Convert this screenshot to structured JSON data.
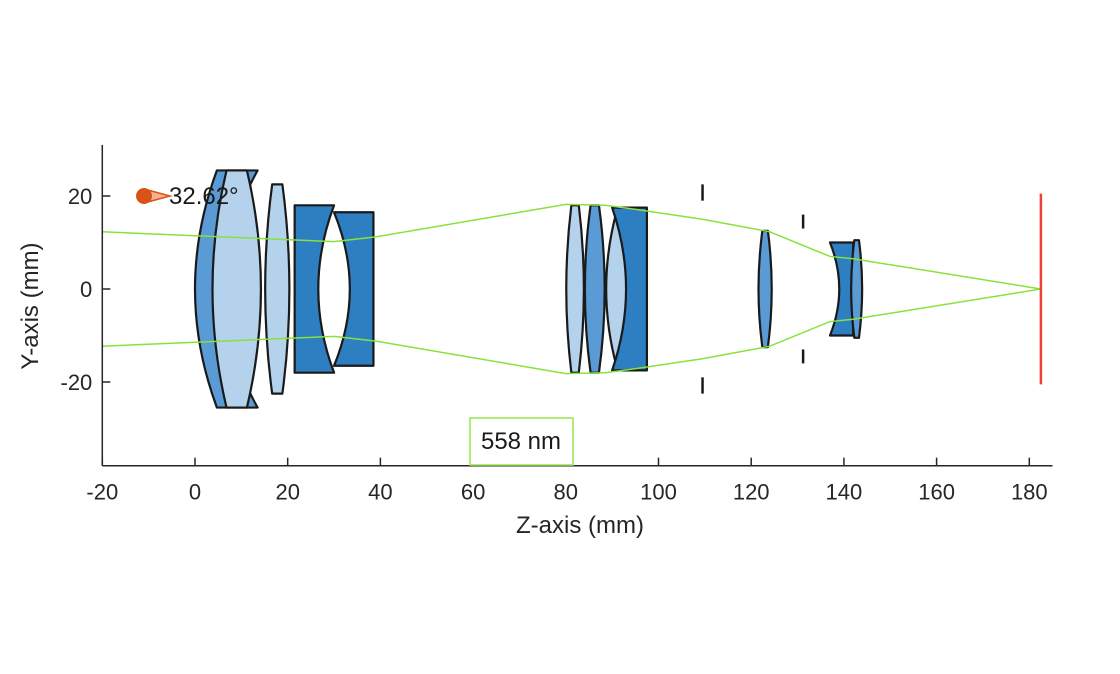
{
  "x_axis": {
    "label": "Z-axis (mm)",
    "range": [
      -20,
      185
    ],
    "ticks": [
      -20,
      0,
      20,
      40,
      60,
      80,
      100,
      120,
      140,
      160,
      180
    ]
  },
  "y_axis": {
    "label": "Y-axis (mm)",
    "range": [
      -38,
      31
    ],
    "ticks": [
      20,
      0,
      -20
    ]
  },
  "field_angle": {
    "z": -11,
    "y": 20,
    "label": "32.62°"
  },
  "wavelength": {
    "label": "558 nm",
    "color": "#99e64d"
  },
  "colors": {
    "lens_light": "#b4d2ec",
    "lens_medium": "#5b9bd5",
    "lens_dark": "#2e7ec2",
    "lens_edge": "#1a1a1a",
    "ray": "#88e23c",
    "image_plane": "#ee4035",
    "field_marker": "#d95319",
    "axis": "#262626"
  },
  "lenses": [
    {
      "type": "meniscus-left",
      "z1": 0,
      "z2": 13.5,
      "h": 25.5,
      "color": "lens_medium"
    },
    {
      "type": "biconvex",
      "z1": 3.5,
      "z2": 14.5,
      "h": 25.5,
      "color": "lens_light"
    },
    {
      "type": "biconvex",
      "z1": 15,
      "z2": 20.5,
      "h": 22.5,
      "color": "lens_light"
    },
    {
      "type": "concave-right",
      "z1": 21.5,
      "z2": 30,
      "h": 18,
      "color": "lens_dark"
    },
    {
      "type": "concave-left",
      "z1": 30,
      "z2": 38.5,
      "h": 16.5,
      "color": "lens_dark"
    },
    {
      "type": "biconvex",
      "z1": 80,
      "z2": 84,
      "h": 18,
      "color": "lens_light"
    },
    {
      "type": "biconvex",
      "z1": 84,
      "z2": 88.5,
      "h": 18,
      "color": "lens_medium"
    },
    {
      "type": "biconvex",
      "z1": 88.5,
      "z2": 97,
      "h": 17,
      "color": "lens_light"
    },
    {
      "type": "concave-left",
      "z1": 90,
      "z2": 97.5,
      "h": 17.5,
      "color": "lens_dark"
    },
    {
      "type": "biconvex",
      "z1": 121.5,
      "z2": 124.5,
      "h": 12.5,
      "color": "lens_medium"
    },
    {
      "type": "concave-left",
      "z1": 137,
      "z2": 142,
      "h": 10,
      "color": "lens_dark"
    },
    {
      "type": "biconvex",
      "z1": 141.5,
      "z2": 144,
      "h": 10.5,
      "color": "lens_medium"
    }
  ],
  "stops": [
    {
      "z": 109.5,
      "h_in": 19,
      "h_out": 18.5
    },
    {
      "z": 131.2,
      "h_in": 13,
      "h_out": 12
    }
  ],
  "rays": [
    [
      [
        -20,
        12.3
      ],
      [
        30,
        10.2
      ],
      [
        39,
        11.2
      ],
      [
        80,
        18.2
      ],
      [
        88.5,
        18
      ],
      [
        96,
        17
      ],
      [
        109.5,
        15
      ],
      [
        124,
        12.3
      ],
      [
        137,
        7
      ],
      [
        142,
        6.5
      ],
      [
        182.5,
        0
      ]
    ],
    [
      [
        -20,
        -12.3
      ],
      [
        30,
        -10.2
      ],
      [
        39,
        -11.2
      ],
      [
        80,
        -18.2
      ],
      [
        88.5,
        -18
      ],
      [
        96,
        -17
      ],
      [
        109.5,
        -15
      ],
      [
        124,
        -12.3
      ],
      [
        137,
        -7
      ],
      [
        142,
        -6.5
      ],
      [
        182.5,
        0
      ]
    ]
  ],
  "image_plane": {
    "z": 182.5,
    "h": 20.5
  }
}
